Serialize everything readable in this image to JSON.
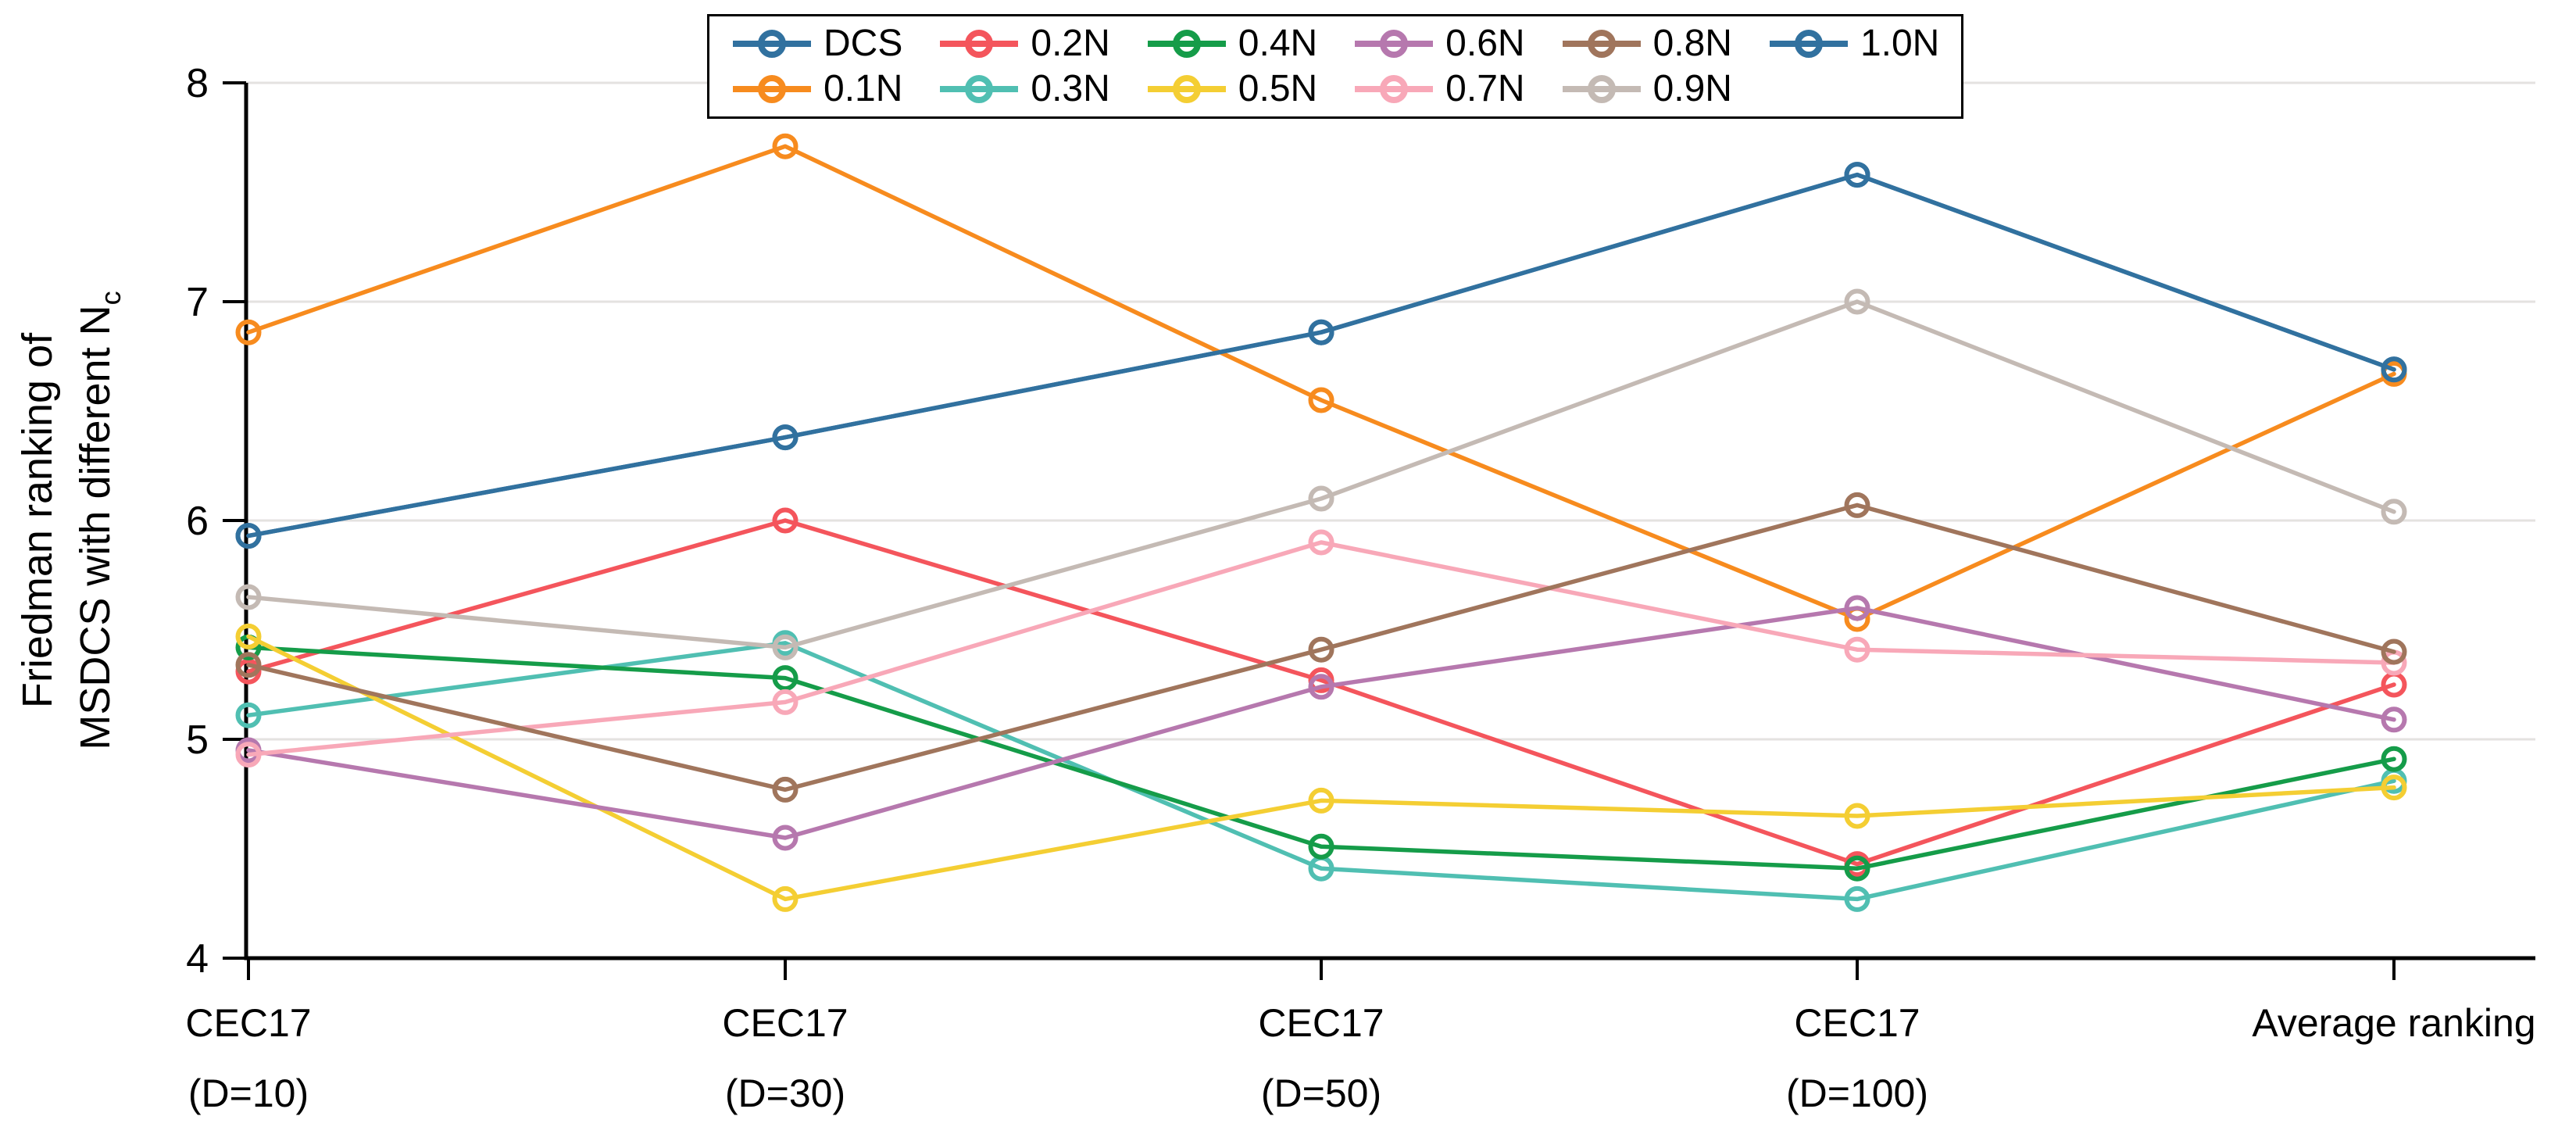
{
  "chart_data": {
    "type": "line",
    "title": "",
    "categories": [
      "CEC17 (D=10)",
      "CEC17 (D=30)",
      "CEC17 (D=50)",
      "CEC17 (D=100)",
      "Average ranking"
    ],
    "x_tick_lines": [
      [
        "CEC17",
        "(D=10)"
      ],
      [
        "CEC17",
        "(D=30)"
      ],
      [
        "CEC17",
        "(D=50)"
      ],
      [
        "CEC17",
        "(D=100)"
      ],
      [
        "Average ranking"
      ]
    ],
    "ylabel_lines": [
      "Friedman ranking of",
      "MSDCS with different N"
    ],
    "ylabel_subscript": "c",
    "xlabel": "",
    "ylim": [
      4,
      8
    ],
    "yticks": [
      "4",
      "5",
      "6",
      "7",
      "8"
    ],
    "grid": true,
    "legend_position": "upper center, 2 rows, column-major",
    "marker": "open-circle",
    "gridline_color": "#E4E2E0",
    "axis_color": "#000000",
    "series": [
      {
        "name": "DCS",
        "color": "#31719F",
        "values": [
          5.93,
          6.38,
          6.86,
          7.58,
          6.69
        ]
      },
      {
        "name": "0.1N",
        "color": "#F78B1E",
        "values": [
          6.86,
          7.71,
          6.55,
          5.55,
          6.67
        ]
      },
      {
        "name": "0.2N",
        "color": "#F4555C",
        "values": [
          5.31,
          6.0,
          5.27,
          4.43,
          5.25
        ]
      },
      {
        "name": "0.3N",
        "color": "#50BFB2",
        "values": [
          5.11,
          5.44,
          4.41,
          4.27,
          4.81
        ]
      },
      {
        "name": "0.4N",
        "color": "#159C49",
        "values": [
          5.42,
          5.28,
          4.51,
          4.41,
          4.91
        ]
      },
      {
        "name": "0.5N",
        "color": "#F4CE33",
        "values": [
          5.47,
          4.27,
          4.72,
          4.65,
          4.78
        ]
      },
      {
        "name": "0.6N",
        "color": "#B678AE",
        "values": [
          4.95,
          4.55,
          5.24,
          5.6,
          5.09
        ]
      },
      {
        "name": "0.7N",
        "color": "#F8A8B8",
        "values": [
          4.93,
          5.17,
          5.9,
          5.41,
          5.35
        ]
      },
      {
        "name": "0.8N",
        "color": "#A0755C",
        "values": [
          5.34,
          4.77,
          5.41,
          6.07,
          5.4
        ]
      },
      {
        "name": "0.9N",
        "color": "#C4BAB4",
        "values": [
          5.65,
          5.42,
          6.1,
          7.0,
          6.04
        ]
      },
      {
        "name": "1.0N",
        "color": "#31719F",
        "values": [
          5.93,
          6.38,
          6.86,
          7.58,
          6.69
        ]
      }
    ]
  }
}
